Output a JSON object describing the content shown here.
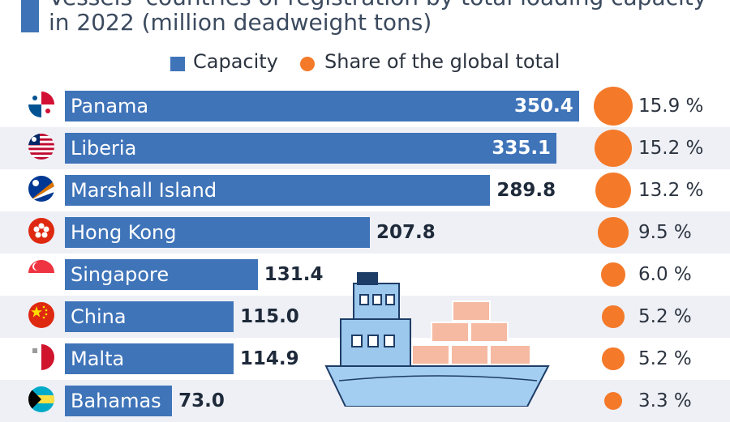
{
  "title": {
    "line1": "Vessels' countries of registration by total loading capacity",
    "line2": "in 2022 (million deadweight tons)"
  },
  "legend": {
    "capacity": "Capacity",
    "share": "Share of the global total"
  },
  "colors": {
    "bar": "#3f74b9",
    "dot": "#f47a2a",
    "row_alt": "#eef0f6"
  },
  "chart_data": {
    "type": "bar",
    "orientation": "horizontal",
    "categories": [
      "Panama",
      "Liberia",
      "Marshall Island",
      "Hong Kong",
      "Singapore",
      "China",
      "Malta",
      "Bahamas"
    ],
    "series": [
      {
        "name": "Capacity",
        "values": [
          350.4,
          335.1,
          289.8,
          207.8,
          131.4,
          115.0,
          114.9,
          73.0
        ]
      },
      {
        "name": "Share of the global total",
        "values": [
          15.9,
          15.2,
          13.2,
          9.5,
          6.0,
          5.2,
          5.2,
          3.3
        ]
      }
    ],
    "value_labels": [
      "350.4",
      "335.1",
      "289.8",
      "207.8",
      "131.4",
      "115.0",
      "114.9",
      "73.0"
    ],
    "share_labels": [
      "15.9 %",
      "15.2 %",
      "13.2 %",
      "9.5 %",
      "6.0 %",
      "5.2 %",
      "5.2 %",
      "3.3 %"
    ],
    "flags": [
      "panama-flag-icon",
      "liberia-flag-icon",
      "marshall-islands-flag-icon",
      "hong-kong-flag-icon",
      "singapore-flag-icon",
      "china-flag-icon",
      "malta-flag-icon",
      "bahamas-flag-icon"
    ],
    "legend_position": "top"
  }
}
